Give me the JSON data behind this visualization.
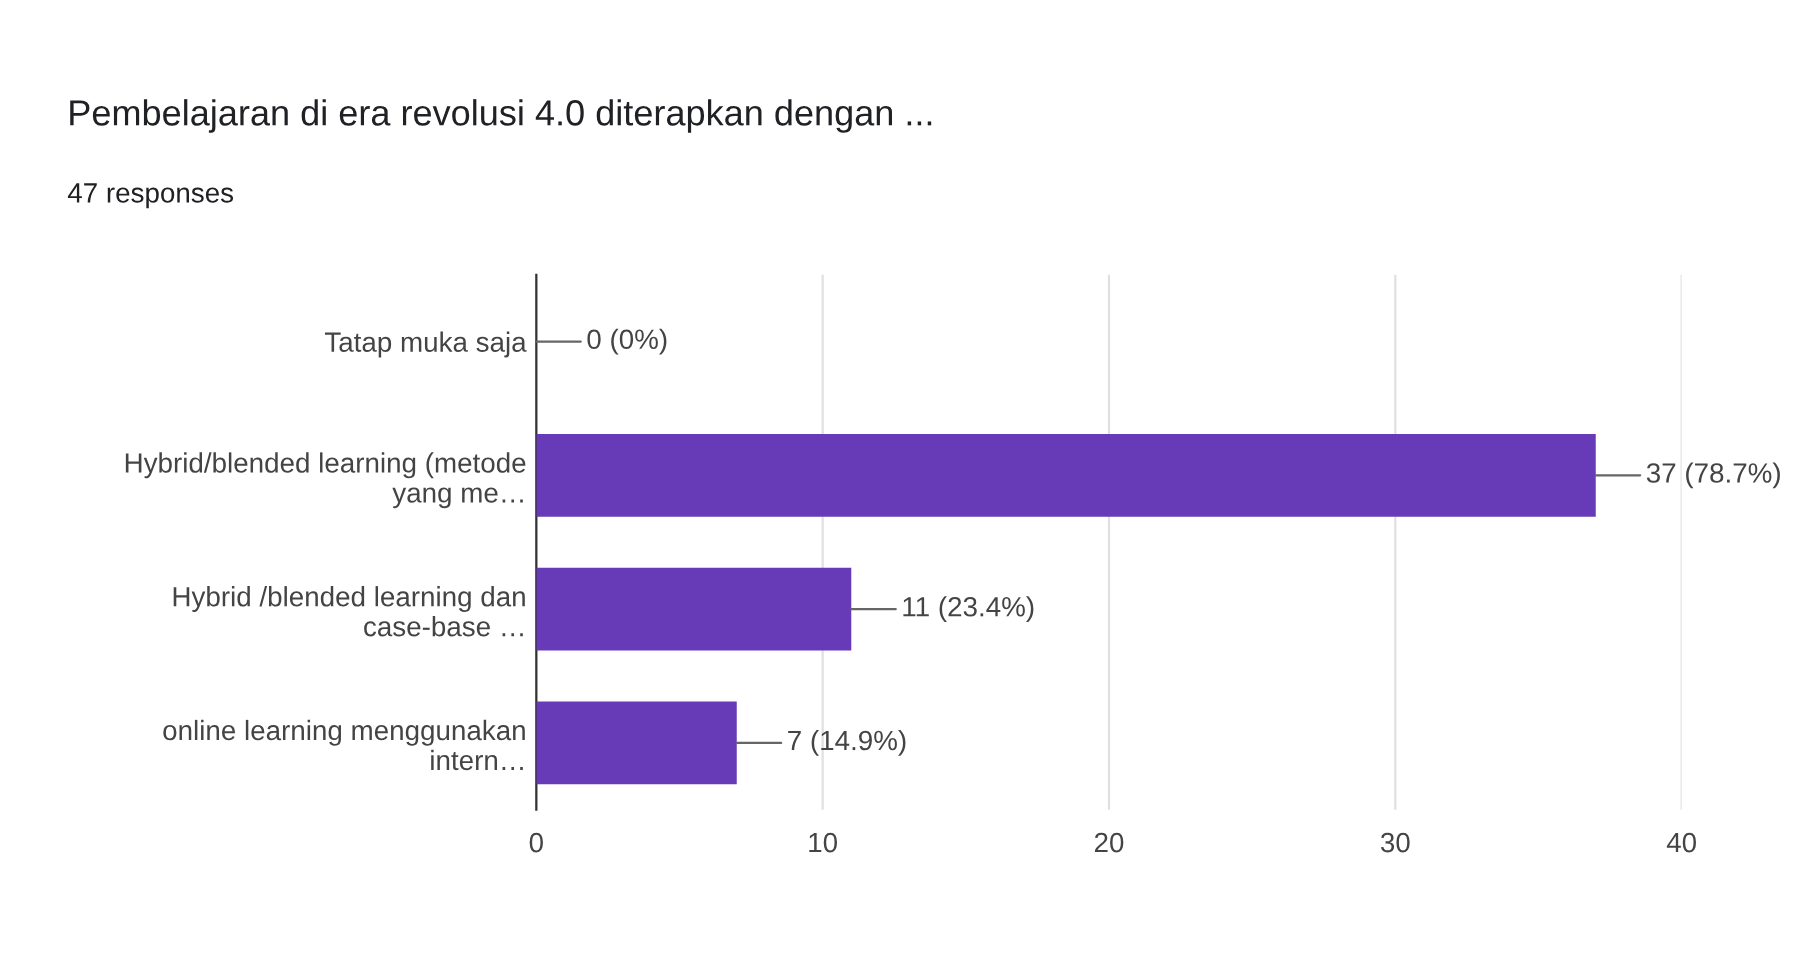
{
  "chart_data": {
    "type": "bar",
    "orientation": "horizontal",
    "title": "Pembelajaran di era revolusi 4.0 diterapkan dengan ...",
    "subtitle": "47 responses",
    "categories": [
      "Tatap muka saja",
      "Hybrid/blended learning (metode\nyang me…",
      "Hybrid /blended learning dan\ncase-base …",
      "online learning menggunakan\nintern…"
    ],
    "values": [
      0,
      37,
      11,
      7
    ],
    "value_labels": [
      "0 (0%)",
      "37 (78.7%)",
      "11 (23.4%)",
      "7 (14.9%)"
    ],
    "color": "#673ab7",
    "xlim": [
      0,
      40
    ],
    "xticks": [
      0,
      10,
      20,
      30,
      40
    ],
    "grid": "x",
    "legend": false
  }
}
